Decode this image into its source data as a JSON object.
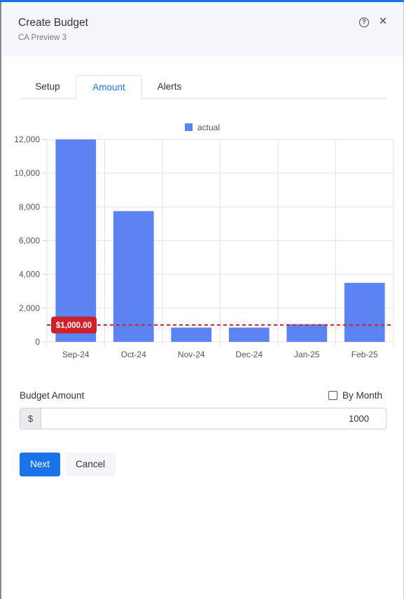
{
  "dialog": {
    "title": "Create Budget",
    "subtitle": "CA Preview 3",
    "help_glyph": "?",
    "close_glyph": "×",
    "accent_color": "#1a73e8"
  },
  "tabs": [
    {
      "label": "Setup",
      "active": false
    },
    {
      "label": "Amount",
      "active": true
    },
    {
      "label": "Alerts",
      "active": false
    }
  ],
  "chart_data": {
    "type": "bar",
    "categories": [
      "Sep-24",
      "Oct-24",
      "Nov-24",
      "Dec-24",
      "Jan-25",
      "Feb-25"
    ],
    "series": [
      {
        "name": "actual",
        "values": [
          12000,
          7750,
          850,
          850,
          1050,
          3500
        ],
        "color": "#5b84f2"
      }
    ],
    "ylim": [
      0,
      12000
    ],
    "yticks": [
      0,
      2000,
      4000,
      6000,
      8000,
      10000,
      12000
    ],
    "ytick_labels": [
      "0",
      "2,000",
      "4,000",
      "6,000",
      "8,000",
      "10,000",
      "12,000"
    ],
    "legend_position": "top-center",
    "grid": true,
    "threshold": {
      "value": 1000,
      "label": "$1,000.00",
      "color": "#d0212a"
    }
  },
  "form": {
    "budget_label": "Budget Amount",
    "by_month_label": "By Month",
    "by_month_checked": false,
    "currency_prefix": "$",
    "amount_value": "1000"
  },
  "buttons": {
    "next": "Next",
    "cancel": "Cancel"
  }
}
